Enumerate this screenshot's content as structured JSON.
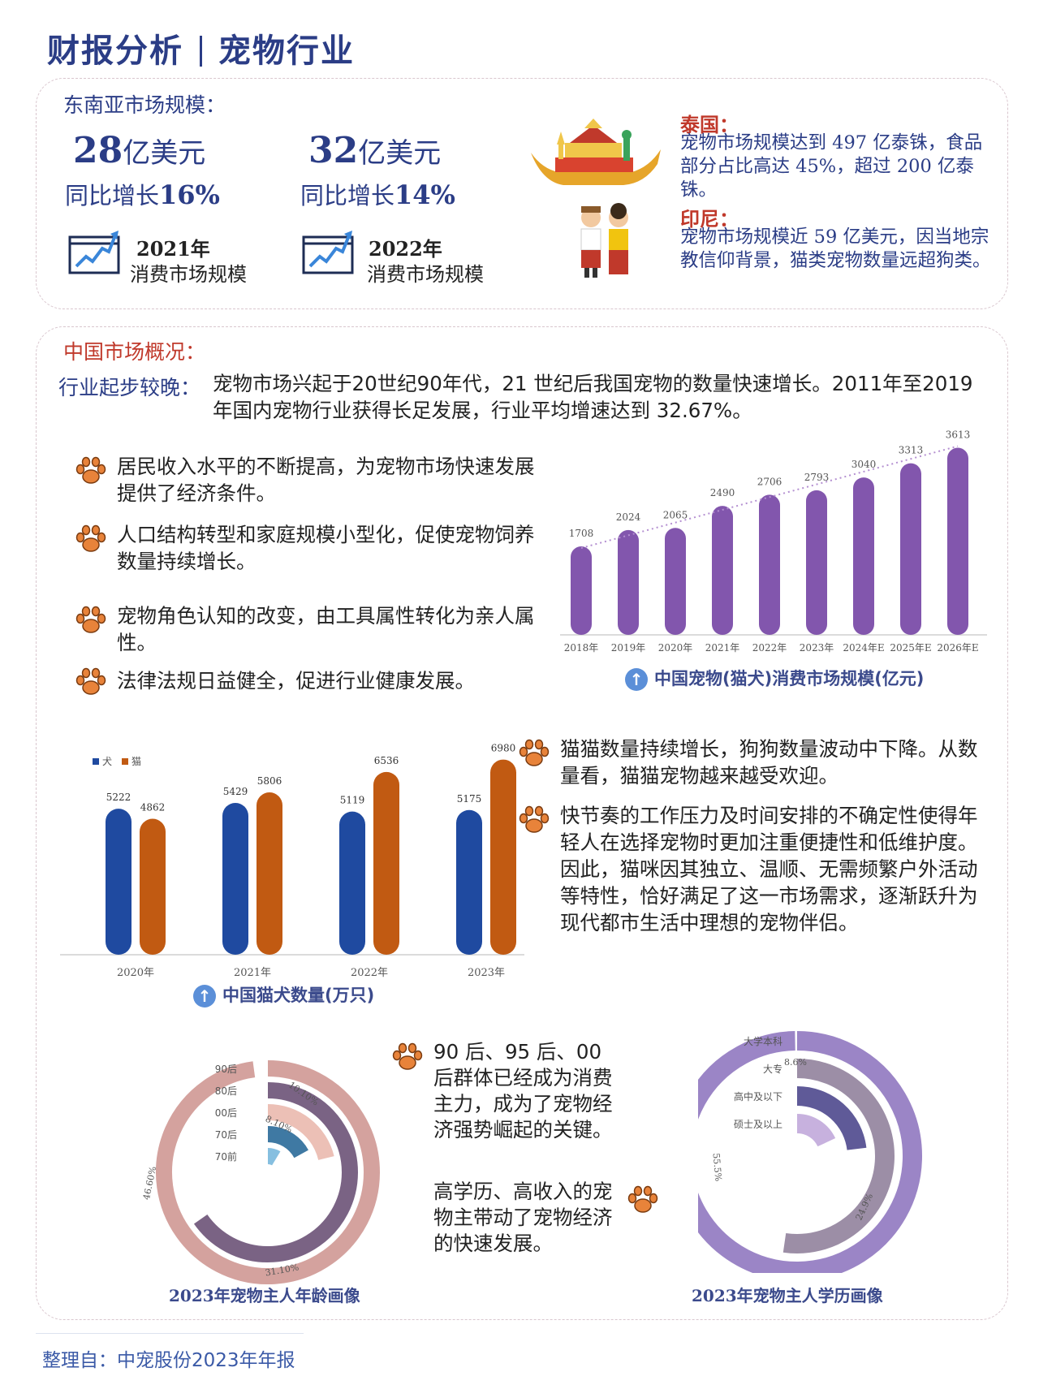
{
  "header": {
    "left": "财报分析",
    "right": "宠物行业"
  },
  "sea": {
    "title": "东南亚市场规模：",
    "stats": [
      {
        "value": "28",
        "unit": "亿美元",
        "growth_prefix": "同比增长",
        "growth": "16%",
        "year": "2021年",
        "label": "消费市场规模"
      },
      {
        "value": "32",
        "unit": "亿美元",
        "growth_prefix": "同比增长",
        "growth": "14%",
        "year": "2022年",
        "label": "消费市场规模"
      }
    ],
    "thailand": {
      "name": "泰国：",
      "text": "宠物市场规模达到 497 亿泰铢，食品部分占比高达 45%，超过 200 亿泰铢。"
    },
    "indonesia": {
      "name": "印尼：",
      "text": "宠物市场规模近 59 亿美元，因当地宗教信仰背景，猫类宠物数量远超狗类。"
    }
  },
  "china": {
    "title": "中国市场概况：",
    "intro_label": "行业起步较晚：",
    "intro_text": "宠物市场兴起于20世纪90年代，21 世纪后我国宠物的数量快速增长。2011年至2019年国内宠物行业获得长足发展，行业平均增速达到 32.67%。",
    "bullets_top": [
      "居民收入水平的不断提高，为宠物市场快速发展提供了经济条件。",
      "人口结构转型和家庭规模小型化，促使宠物饲养数量持续增长。",
      "宠物角色认知的改变，由工具属性转化为亲人属性。",
      "法律法规日益健全，促进行业健康发展。"
    ],
    "bullets_mid": [
      "猫猫数量持续增长，狗狗数量波动中下降。从数量看，猫猫宠物越来越受欢迎。",
      "快节奏的工作压力及时间安排的不确定性使得年轻人在选择宠物时更加注重便捷性和低维护度。因此，猫咪因其独立、温顺、无需频繁户外活动等特性，恰好满足了这一市场需求，逐渐跃升为现代都市生活中理想的宠物伴侣。"
    ],
    "bullet_age": "90 后、95 后、00 后群体已经成为消费主力，成为了宠物经济强势崛起的关键。",
    "bullet_edu": "高学历、高收入的宠物主带动了宠物经济的快速发展。"
  },
  "footer": "整理自：中宠股份2023年年报",
  "chart_data": [
    {
      "type": "bar",
      "title": "中国宠物(猫犬)消费市场规模(亿元)",
      "categories": [
        "2018年",
        "2019年",
        "2020年",
        "2021年",
        "2022年",
        "2023年",
        "2024年E",
        "2025年E",
        "2026年E"
      ],
      "values": [
        1708,
        2024,
        2065,
        2490,
        2706,
        2793,
        3040,
        3313,
        3613
      ],
      "trendline": "dotted linear",
      "color": "#8256ad"
    },
    {
      "type": "bar",
      "title": "中国猫犬数量(万只)",
      "categories": [
        "2020年",
        "2021年",
        "2022年",
        "2023年"
      ],
      "series": [
        {
          "name": "犬",
          "values": [
            5222,
            5429,
            5119,
            5175
          ],
          "color": "#1f4aa0"
        },
        {
          "name": "猫",
          "values": [
            4862,
            5806,
            6536,
            6980
          ],
          "color": "#c15a12"
        }
      ],
      "legend": "top-left"
    },
    {
      "type": "pie",
      "style": "radial-rings",
      "title": "2023年宠物主人年龄画像",
      "categories": [
        "90后",
        "80后",
        "00后",
        "70后",
        "70前"
      ],
      "labels": [
        "46.60%",
        "31.10%",
        "10.10%",
        "8.10%",
        ""
      ],
      "values": [
        46.6,
        31.1,
        10.1,
        8.1,
        4.1
      ],
      "colors": [
        "#d4a29e",
        "#7a6384",
        "#ecc0b6",
        "#3f79a3",
        "#86bfe0"
      ]
    },
    {
      "type": "pie",
      "style": "radial-rings",
      "title": "2023年宠物主人学历画像",
      "categories": [
        "大学本科",
        "大专",
        "高中及以下",
        "硕士及以上"
      ],
      "labels": [
        "55.5%",
        "24.9%",
        "",
        "8.6%"
      ],
      "values": [
        55.5,
        24.9,
        11.0,
        8.6
      ],
      "colors": [
        "#9b85c6",
        "#9c8ea6",
        "#5f5a98",
        "#c7b1de"
      ]
    }
  ]
}
